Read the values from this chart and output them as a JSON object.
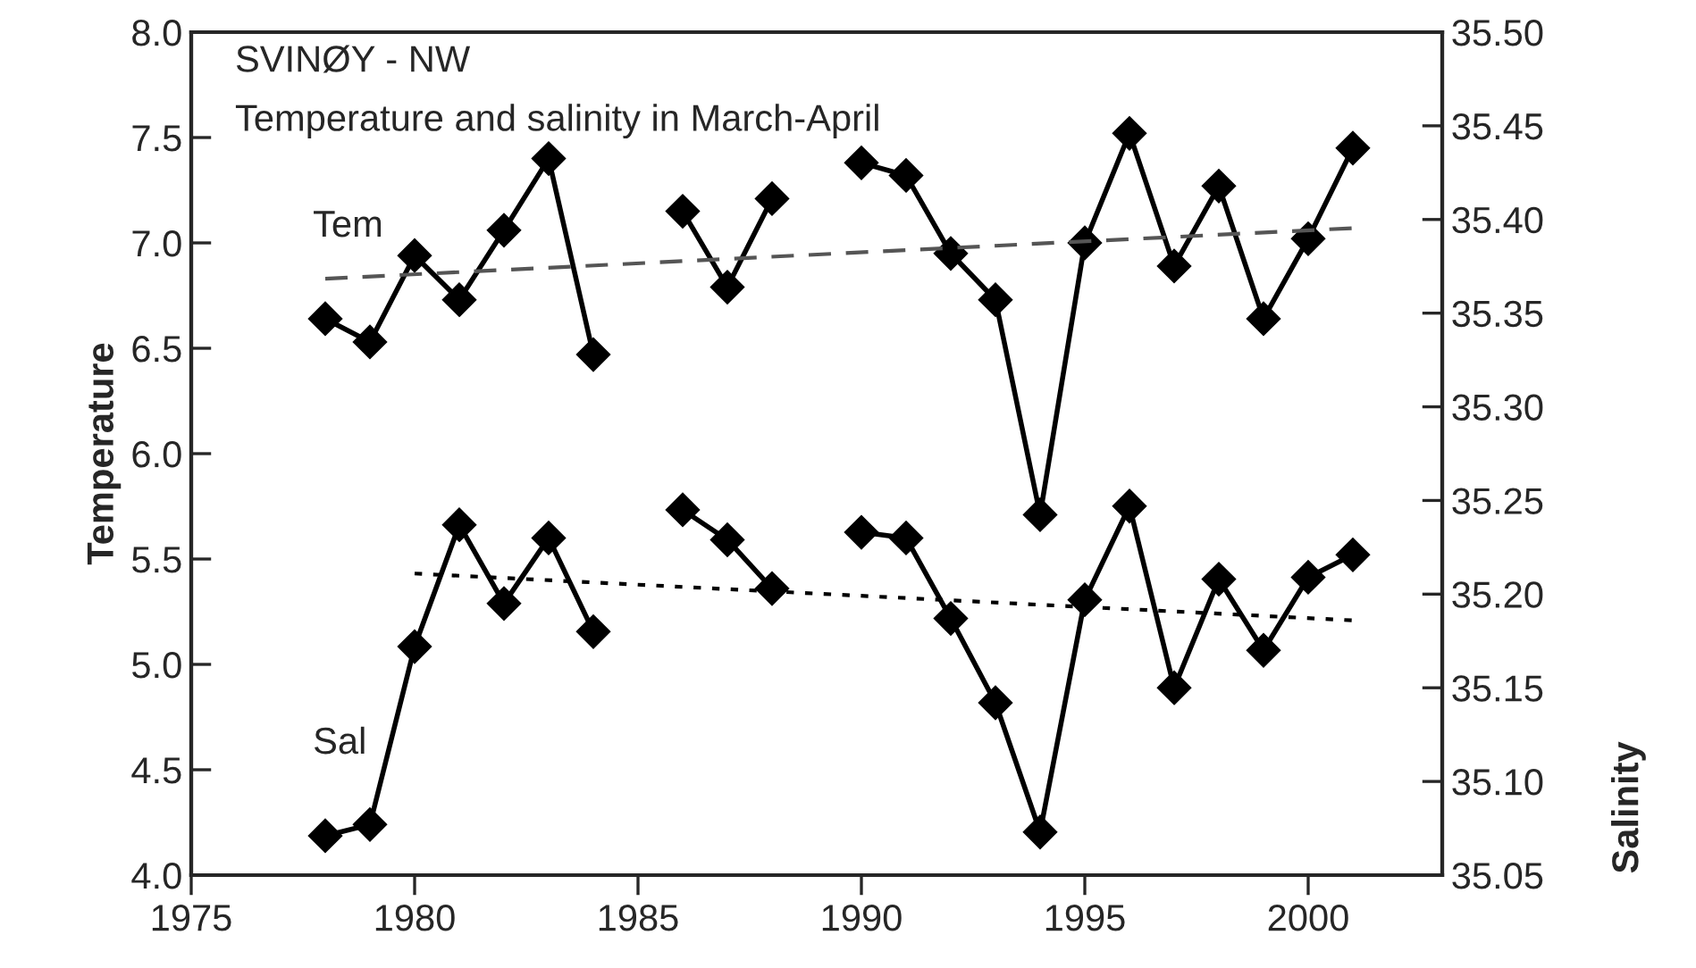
{
  "chart_data": {
    "type": "line",
    "title": "SVINØY - NW",
    "subtitle": "Temperature and salinity in March-April",
    "ylabel": "Temperature",
    "y2label": "Salinity",
    "x": [
      1978,
      1979,
      1980,
      1981,
      1982,
      1983,
      1984,
      1985,
      1986,
      1987,
      1988,
      1989,
      1990,
      1991,
      1992,
      1993,
      1994,
      1995,
      1996,
      1997,
      1998,
      1999,
      2000,
      2001
    ],
    "series": [
      {
        "name": "Tem",
        "color": "#000000",
        "marker": "diamond",
        "line_style": "solid",
        "values": [
          6.64,
          6.53,
          6.94,
          6.73,
          7.06,
          7.4,
          6.47,
          null,
          7.15,
          6.79,
          7.21,
          null,
          7.38,
          7.32,
          6.95,
          6.73,
          5.71,
          7.0,
          7.52,
          6.89,
          7.27,
          6.64,
          7.02,
          7.45
        ]
      },
      {
        "name": "Sal",
        "color": "#000000",
        "marker": "diamond",
        "line_style": "solid",
        "axis": "y2",
        "values": [
          35.071,
          35.077,
          35.172,
          35.237,
          35.195,
          35.23,
          35.18,
          null,
          35.245,
          35.229,
          35.203,
          null,
          35.233,
          35.23,
          35.187,
          35.142,
          35.073,
          35.197,
          35.247,
          35.15,
          35.208,
          35.17,
          35.209,
          35.221
        ]
      },
      {
        "color": "#555555",
        "marker": "none",
        "line_style": "dashed",
        "x": [
          1978,
          2001
        ],
        "values": [
          6.83,
          7.07
        ]
      },
      {
        "color": "#000000",
        "marker": "none",
        "line_style": "dotted",
        "axis": "y2",
        "x": [
          1980,
          2001
        ],
        "values": [
          35.211,
          35.186
        ]
      }
    ],
    "xlim": [
      1975,
      2003
    ],
    "xticks": [
      1975,
      1980,
      1985,
      1990,
      1995,
      2000
    ],
    "ylim": [
      4,
      8
    ],
    "yticks": [
      {
        "value": 4,
        "label": "4.0"
      },
      {
        "value": 4.5,
        "label": "4.5"
      },
      {
        "value": 5,
        "label": "5.0"
      },
      {
        "value": 5.5,
        "label": "5.5"
      },
      {
        "value": 6,
        "label": "6.0"
      },
      {
        "value": 6.5,
        "label": "6.5"
      },
      {
        "value": 7,
        "label": "7.0"
      },
      {
        "value": 7.5,
        "label": "7.5"
      },
      {
        "value": 8,
        "label": "8.0"
      }
    ],
    "y2lim": [
      35.05,
      35.5
    ],
    "y2ticks": [
      {
        "value": 35.05,
        "label": "35.05"
      },
      {
        "value": 35.1,
        "label": "35.10"
      },
      {
        "value": 35.15,
        "label": "35.15"
      },
      {
        "value": 35.2,
        "label": "35.20"
      },
      {
        "value": 35.25,
        "label": "35.25"
      },
      {
        "value": 35.3,
        "label": "35.30"
      },
      {
        "value": 35.35,
        "label": "35.35"
      },
      {
        "value": 35.4,
        "label": "35.40"
      },
      {
        "value": 35.45,
        "label": "35.45"
      },
      {
        "value": 35.5,
        "label": "35.50"
      }
    ],
    "grid": false,
    "legend": false
  }
}
